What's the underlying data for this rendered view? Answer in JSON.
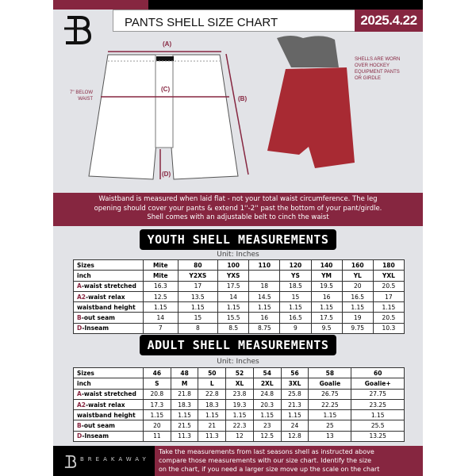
{
  "header": {
    "title": "PANTS SHELL SIZE CHART",
    "date": "2025.4.22"
  },
  "diagram": {
    "label_a": "(A)",
    "label_b": "(B)",
    "label_c": "(C)",
    "label_d": "(D)",
    "c_note": [
      "7'' BELOW",
      "WAIST"
    ],
    "shell_note": [
      "SHELLS ARE WORN",
      "OVER HOCKEY",
      "EQUIPMENT PANTS",
      "OR GIRDLE"
    ]
  },
  "info_band": [
    "Waistband is measured when laid flat - not your total waist circumference. The leg",
    "opening should cover your pants & extend 1''-2'' past the bottom of your pant/girdle.",
    "Shell comes with an adjustable belt to cinch the waist"
  ],
  "youth": {
    "title": "YOUTH SHELL MEASUREMENTS",
    "unit": "Unit: Inches",
    "rows": [
      {
        "key": "",
        "label": "Sizes",
        "values": [
          "Mite",
          "80",
          "100",
          "110",
          "120",
          "140",
          "160",
          "180"
        ]
      },
      {
        "key": "",
        "label": "inch",
        "values": [
          "Mite",
          "Y2XS",
          "YXS",
          "",
          "YS",
          "YM",
          "YL",
          "YXL"
        ]
      },
      {
        "key": "A",
        "label": "-waist stretched",
        "values": [
          "16.3",
          "17",
          "17.5",
          "18",
          "18.5",
          "19.5",
          "20",
          "20.5"
        ]
      },
      {
        "key": "A2",
        "label": "-waist relax",
        "values": [
          "12.5",
          "13.5",
          "14",
          "14.5",
          "15",
          "16",
          "16.5",
          "17"
        ]
      },
      {
        "key": "",
        "label": "waistband height",
        "values": [
          "1.15",
          "1.15",
          "1.15",
          "1.15",
          "1.15",
          "1.15",
          "1.15",
          "1.15"
        ]
      },
      {
        "key": "B",
        "label": "-out seam",
        "values": [
          "14",
          "15",
          "15.5",
          "16",
          "16.5",
          "17.5",
          "19",
          "20.5"
        ]
      },
      {
        "key": "D",
        "label": "-Inseam",
        "values": [
          "7",
          "8",
          "8.5",
          "8.75",
          "9",
          "9.5",
          "9.75",
          "10.3"
        ]
      }
    ]
  },
  "adult": {
    "title": "ADULT SHELL MEASUREMENTS",
    "unit": "Unit: Inches",
    "rows": [
      {
        "key": "",
        "label": "Sizes",
        "values": [
          "46",
          "48",
          "50",
          "52",
          "54",
          "56",
          "58",
          "60"
        ]
      },
      {
        "key": "",
        "label": "inch",
        "values": [
          "S",
          "M",
          "L",
          "XL",
          "2XL",
          "3XL",
          "Goalie",
          "Goalie+"
        ]
      },
      {
        "key": "A",
        "label": "-waist stretched",
        "values": [
          "20.8",
          "21.8",
          "22.8",
          "23.8",
          "24.8",
          "25.8",
          "26.75",
          "27.75"
        ]
      },
      {
        "key": "A2",
        "label": "-waist relax",
        "values": [
          "17.3",
          "18.3",
          "18.3",
          "19.3",
          "20.3",
          "21.3",
          "22.25",
          "23.25"
        ]
      },
      {
        "key": "",
        "label": "waistband height",
        "values": [
          "1.15",
          "1.15",
          "1.15",
          "1.15",
          "1.15",
          "1.15",
          "1.15",
          "1.15"
        ]
      },
      {
        "key": "B",
        "label": "-out seam",
        "values": [
          "20",
          "21.5",
          "21",
          "22.3",
          "23",
          "24",
          "25",
          "25.5"
        ]
      },
      {
        "key": "D",
        "label": "-Inseam",
        "values": [
          "11",
          "11.3",
          "11.3",
          "12",
          "12.5",
          "12.8",
          "13",
          "13.25"
        ]
      }
    ]
  },
  "footer": {
    "brand": "BREAKAWAY",
    "instructions": [
      "Take the measurements from last seasons shell as instructed above",
      "compare those measurements  with our size chart. Identify the size",
      "on the chart, if you need a larger size move up the scale on the chart"
    ]
  },
  "colors": {
    "maroon": "#862640",
    "black": "#000000",
    "background": "#e2e3e7"
  }
}
